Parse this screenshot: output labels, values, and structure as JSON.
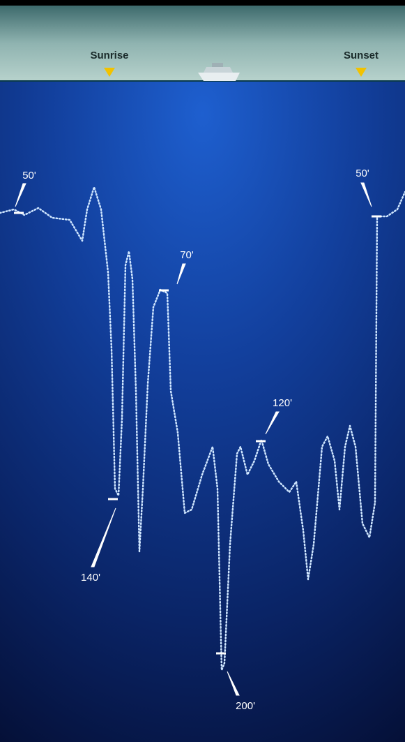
{
  "markers": [
    {
      "label": "Sunrise"
    },
    {
      "label": "Sunset"
    }
  ],
  "depth_labels": [
    {
      "label": "50'"
    },
    {
      "label": "70'"
    },
    {
      "label": "120'"
    },
    {
      "label": "140'"
    },
    {
      "label": "200'"
    },
    {
      "label": "50'"
    }
  ]
}
